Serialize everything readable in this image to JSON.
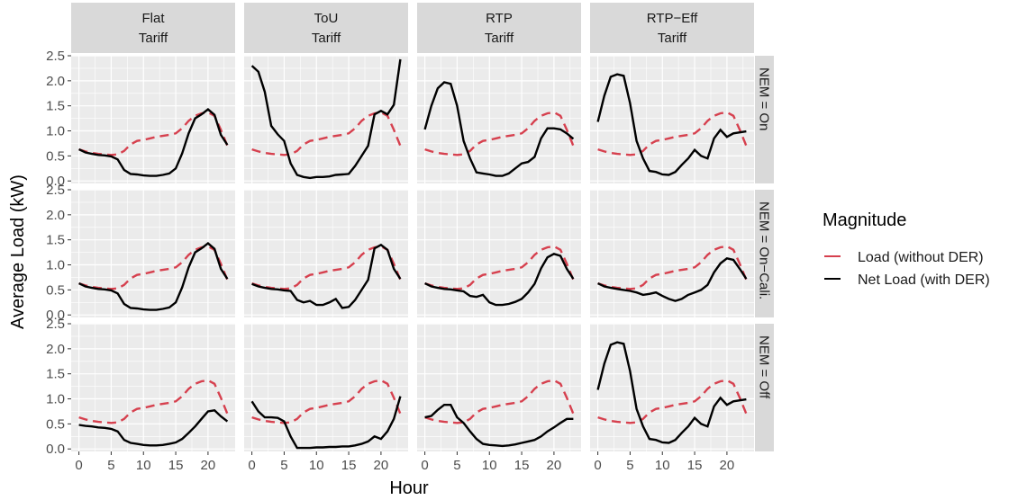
{
  "chart_data": {
    "type": "line",
    "xlabel": "Hour",
    "ylabel": "Average Load (kW)",
    "xlim": [
      -1.2,
      24.2
    ],
    "ylim": [
      -0.05,
      2.5
    ],
    "xticks": [
      "0",
      "5",
      "10",
      "15",
      "20"
    ],
    "xtick_values": [
      0,
      5,
      10,
      15,
      20
    ],
    "yticks": [
      "0.0",
      "0.5",
      "1.0",
      "1.5",
      "2.0",
      "2.5"
    ],
    "ytick_values": [
      0,
      0.5,
      1.0,
      1.5,
      2.0,
      2.5
    ],
    "grid": true,
    "legend_position": "right",
    "legend": {
      "title": "Magnitude",
      "entries": [
        {
          "label": "Load (without DER)",
          "color": "#d6404e",
          "dash": true
        },
        {
          "label": "Net Load (with DER)",
          "color": "#000000",
          "dash": false
        }
      ]
    },
    "columns": [
      {
        "line1": "Flat",
        "line2": "Tariff"
      },
      {
        "line1": "ToU",
        "line2": "Tariff"
      },
      {
        "line1": "RTP",
        "line2": "Tariff"
      },
      {
        "line1": "RTP−Eff",
        "line2": "Tariff"
      }
    ],
    "rows": [
      "NEM = On",
      "NEM = On−Cali.",
      "NEM = Off"
    ],
    "hours": [
      0,
      1,
      2,
      3,
      4,
      5,
      6,
      7,
      8,
      9,
      10,
      11,
      12,
      13,
      14,
      15,
      16,
      17,
      18,
      19,
      20,
      21,
      22,
      23
    ],
    "load": [
      0.63,
      0.59,
      0.56,
      0.54,
      0.53,
      0.52,
      0.53,
      0.6,
      0.73,
      0.8,
      0.82,
      0.85,
      0.88,
      0.9,
      0.92,
      0.95,
      1.05,
      1.2,
      1.3,
      1.35,
      1.37,
      1.3,
      1.02,
      0.7
    ],
    "net_load": [
      [
        [
          0.63,
          0.57,
          0.54,
          0.52,
          0.51,
          0.49,
          0.43,
          0.22,
          0.14,
          0.13,
          0.11,
          0.1,
          0.1,
          0.12,
          0.15,
          0.25,
          0.55,
          0.95,
          1.25,
          1.33,
          1.43,
          1.32,
          0.92,
          0.72
        ],
        [
          2.3,
          2.18,
          1.78,
          1.1,
          0.93,
          0.8,
          0.35,
          0.12,
          0.08,
          0.06,
          0.08,
          0.08,
          0.09,
          0.12,
          0.13,
          0.14,
          0.3,
          0.5,
          0.7,
          1.33,
          1.4,
          1.33,
          1.52,
          2.43
        ],
        [
          1.03,
          1.5,
          1.85,
          1.97,
          1.94,
          1.5,
          0.8,
          0.45,
          0.17,
          0.15,
          0.13,
          0.1,
          0.1,
          0.15,
          0.25,
          0.35,
          0.38,
          0.48,
          0.85,
          1.05,
          1.05,
          1.03,
          0.95,
          0.84
        ],
        [
          1.18,
          1.7,
          2.08,
          2.13,
          2.1,
          1.55,
          0.8,
          0.45,
          0.2,
          0.18,
          0.13,
          0.12,
          0.18,
          0.32,
          0.45,
          0.62,
          0.5,
          0.45,
          0.85,
          1.02,
          0.88,
          0.95,
          0.97,
          0.99
        ]
      ],
      [
        [
          0.63,
          0.57,
          0.54,
          0.52,
          0.51,
          0.49,
          0.43,
          0.22,
          0.14,
          0.13,
          0.11,
          0.1,
          0.1,
          0.12,
          0.15,
          0.25,
          0.55,
          0.95,
          1.25,
          1.33,
          1.43,
          1.32,
          0.92,
          0.72
        ],
        [
          0.62,
          0.57,
          0.54,
          0.52,
          0.51,
          0.49,
          0.48,
          0.3,
          0.25,
          0.28,
          0.2,
          0.2,
          0.25,
          0.32,
          0.14,
          0.16,
          0.3,
          0.5,
          0.7,
          1.33,
          1.4,
          1.3,
          0.92,
          0.72
        ],
        [
          0.63,
          0.57,
          0.54,
          0.52,
          0.51,
          0.49,
          0.47,
          0.38,
          0.36,
          0.4,
          0.25,
          0.2,
          0.2,
          0.22,
          0.26,
          0.32,
          0.45,
          0.62,
          0.93,
          1.15,
          1.22,
          1.18,
          0.92,
          0.72
        ],
        [
          0.63,
          0.57,
          0.54,
          0.52,
          0.5,
          0.48,
          0.45,
          0.4,
          0.42,
          0.45,
          0.38,
          0.32,
          0.28,
          0.32,
          0.4,
          0.45,
          0.5,
          0.6,
          0.85,
          1.03,
          1.13,
          1.1,
          0.92,
          0.72
        ]
      ],
      [
        [
          0.48,
          0.46,
          0.45,
          0.43,
          0.42,
          0.4,
          0.35,
          0.18,
          0.12,
          0.1,
          0.08,
          0.07,
          0.07,
          0.08,
          0.1,
          0.13,
          0.2,
          0.32,
          0.45,
          0.6,
          0.75,
          0.77,
          0.65,
          0.55
        ],
        [
          0.95,
          0.75,
          0.63,
          0.63,
          0.62,
          0.55,
          0.25,
          0.02,
          0.02,
          0.02,
          0.03,
          0.03,
          0.04,
          0.04,
          0.05,
          0.05,
          0.07,
          0.1,
          0.15,
          0.25,
          0.2,
          0.35,
          0.6,
          1.05
        ],
        [
          0.63,
          0.66,
          0.78,
          0.88,
          0.88,
          0.63,
          0.52,
          0.35,
          0.2,
          0.1,
          0.08,
          0.07,
          0.06,
          0.07,
          0.09,
          0.12,
          0.15,
          0.18,
          0.25,
          0.35,
          0.43,
          0.52,
          0.6,
          0.6
        ],
        [
          1.18,
          1.7,
          2.08,
          2.13,
          2.1,
          1.55,
          0.8,
          0.45,
          0.2,
          0.18,
          0.13,
          0.12,
          0.18,
          0.32,
          0.45,
          0.62,
          0.5,
          0.45,
          0.85,
          1.02,
          0.88,
          0.95,
          0.97,
          0.99
        ]
      ]
    ]
  }
}
